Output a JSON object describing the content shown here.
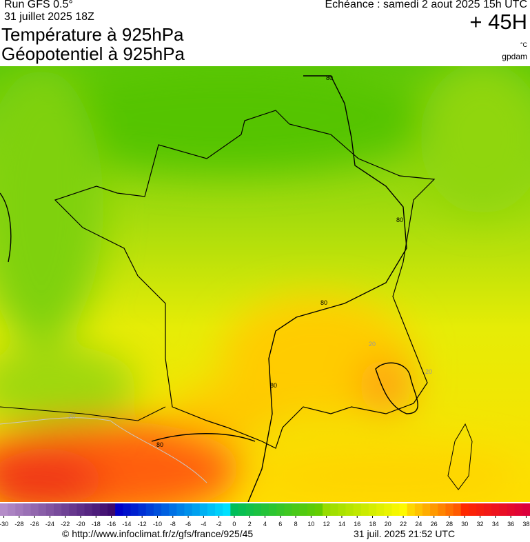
{
  "header": {
    "run": "Run GFS 0.5°",
    "run_date": "31 juillet 2025 18Z",
    "title_1": "Température à 925hPa",
    "title_2": "Géopotentiel à 925hPa",
    "echeance": "Echéance : samedi 2 aout 2025 15h UTC",
    "lead": "+ 45H",
    "unit": "°C",
    "unit_2": "gpdam"
  },
  "map": {
    "contour_labels": [
      "80",
      "80",
      "80",
      "80",
      "80",
      "20",
      "20",
      "20"
    ]
  },
  "colorbar": {
    "ticks": [
      -30,
      -28,
      -26,
      -24,
      -22,
      -20,
      -18,
      -16,
      -14,
      -12,
      -10,
      -8,
      -6,
      -4,
      -2,
      0,
      2,
      4,
      6,
      8,
      10,
      12,
      14,
      16,
      18,
      20,
      22,
      24,
      26,
      28,
      30,
      32,
      34,
      36,
      38
    ]
  },
  "footer": {
    "url": "© http://www.infoclimat.fr/z/gfs/france/925/45",
    "timestamp": "31 juil. 2025 21:52 UTC"
  }
}
